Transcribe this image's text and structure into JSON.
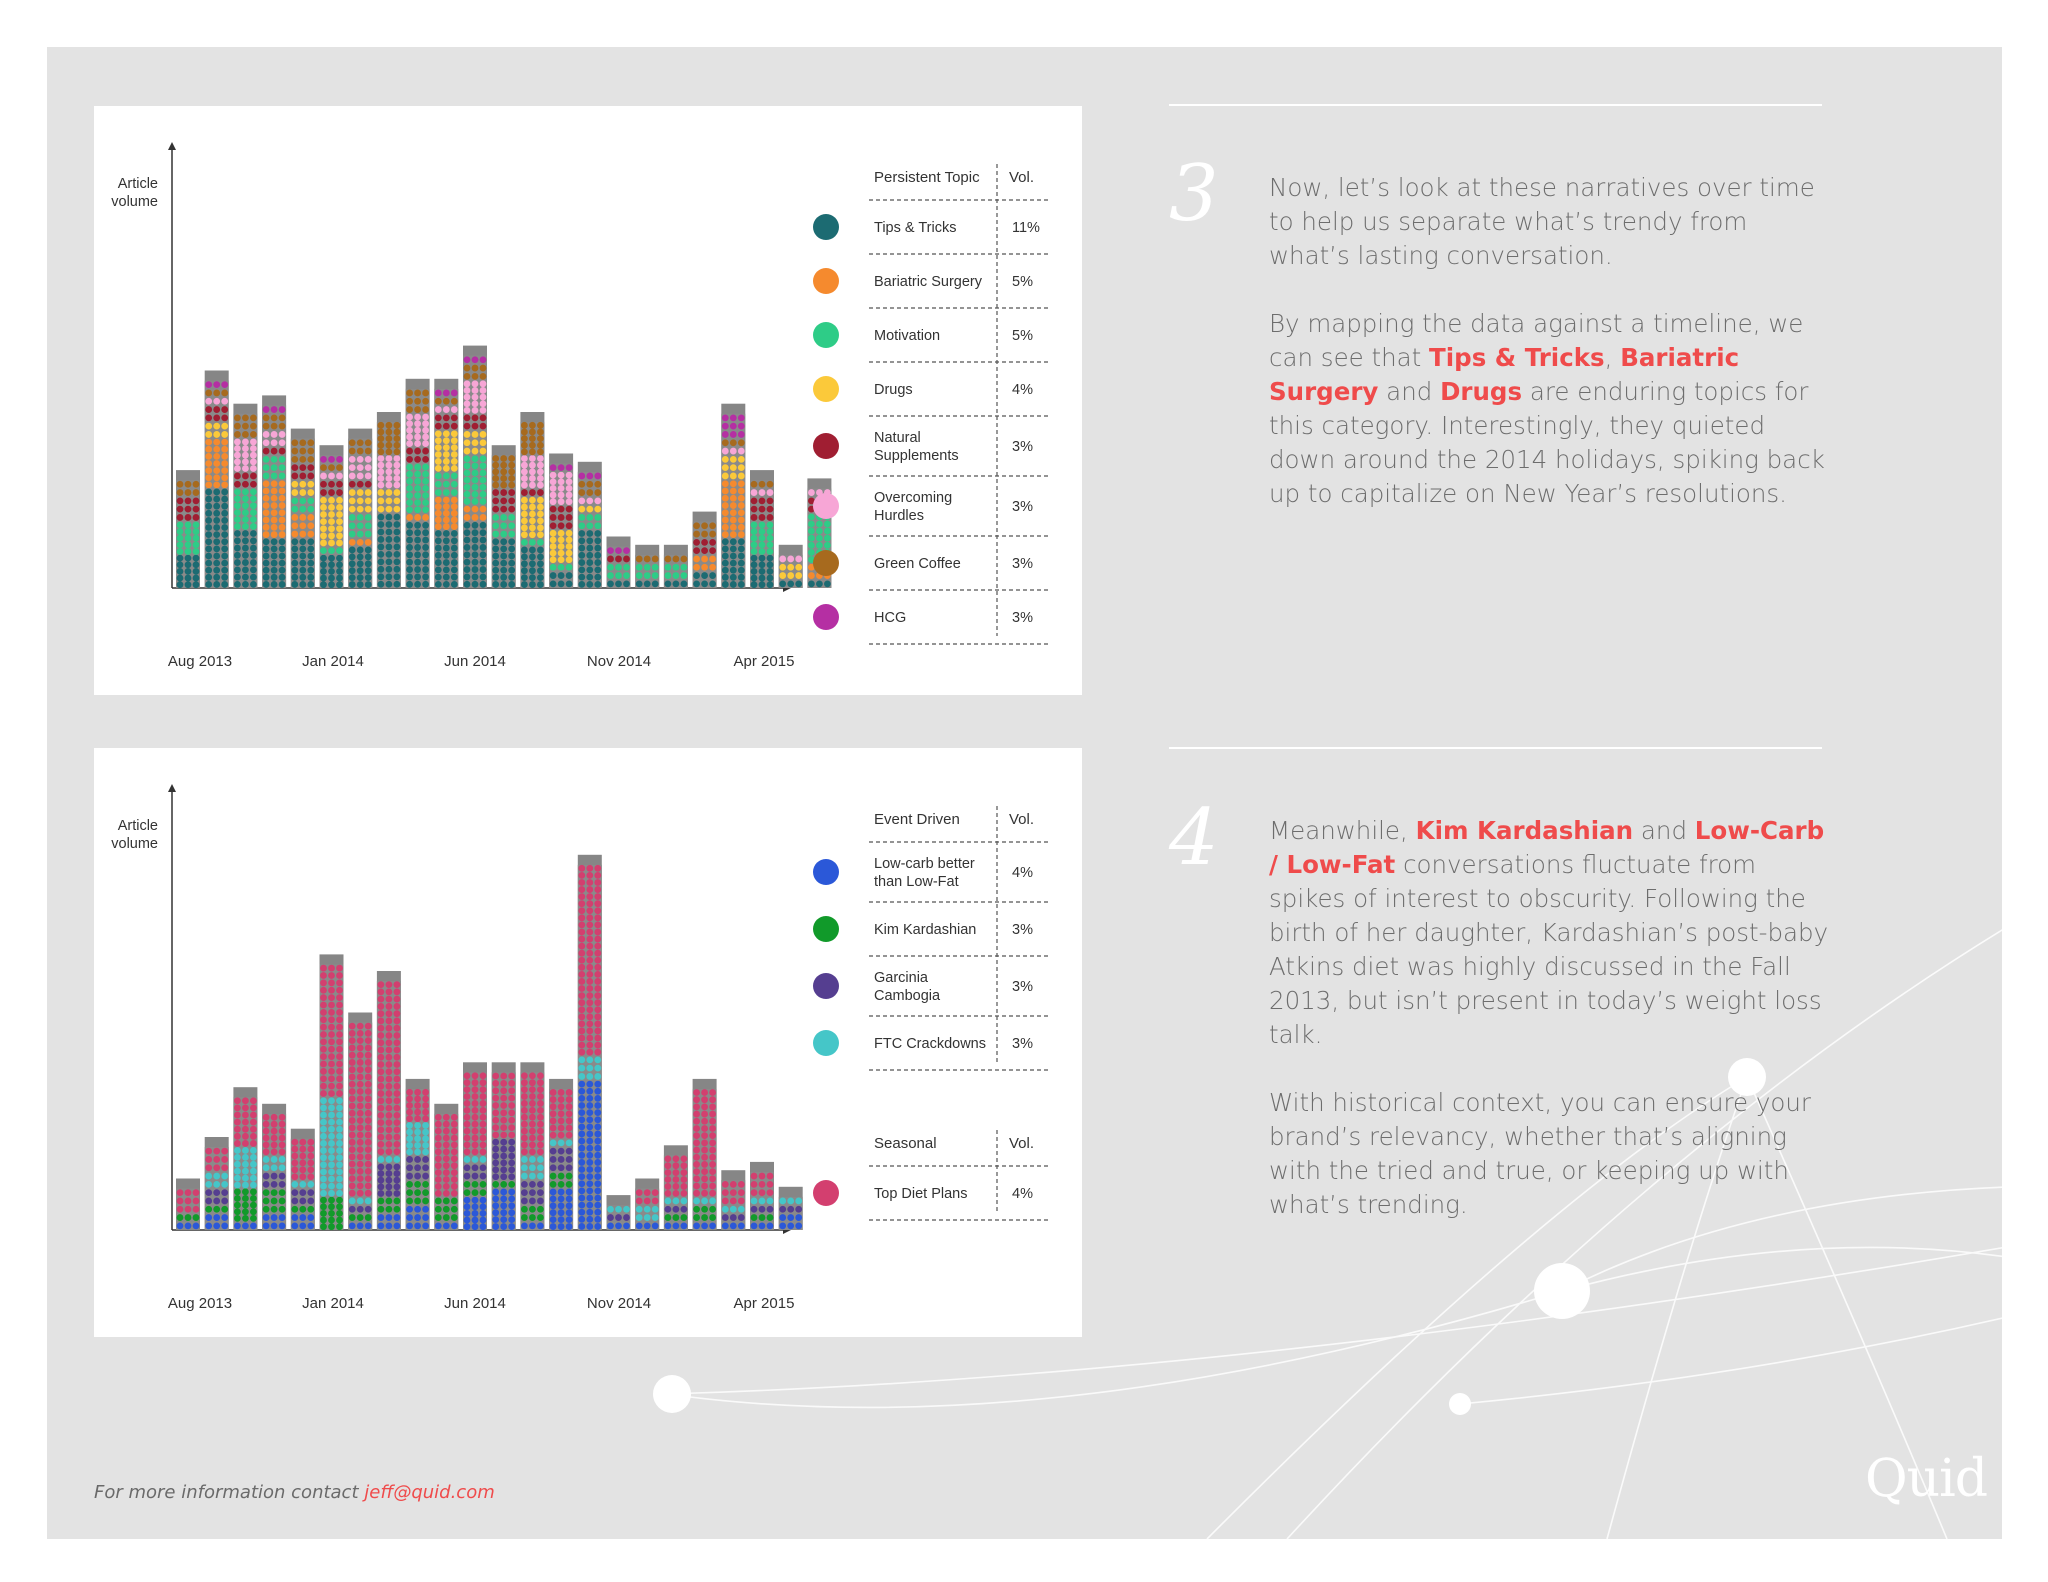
{
  "chart_data": [
    {
      "type": "bar",
      "ylabel": "Article volume",
      "x_tick_labels": [
        "Aug 2013",
        "Jan 2014",
        "Jun 2014",
        "Nov 2014",
        "Apr 2015"
      ],
      "legend": {
        "header_topic": "Persistent Topic",
        "header_vol": "Vol.",
        "items": [
          {
            "lines": [
              "Tips & Tricks"
            ],
            "vol": "11%",
            "color": "#1c6b72"
          },
          {
            "lines": [
              "Bariatric Surgery"
            ],
            "vol": "5%",
            "color": "#f58a2e"
          },
          {
            "lines": [
              "Motivation"
            ],
            "vol": "5%",
            "color": "#2ecc87"
          },
          {
            "lines": [
              "Drugs"
            ],
            "vol": "4%",
            "color": "#fbc93a"
          },
          {
            "lines": [
              "Natural",
              "Supplements"
            ],
            "vol": "3%",
            "color": "#a01e32"
          },
          {
            "lines": [
              "Overcoming",
              "Hurdles"
            ],
            "vol": "3%",
            "color": "#f7a6d6"
          },
          {
            "lines": [
              "Green Coffee"
            ],
            "vol": "3%",
            "color": "#a76a1e"
          },
          {
            "lines": [
              "HCG"
            ],
            "vol": "3%",
            "color": "#b52fa3"
          }
        ]
      },
      "series": [
        {
          "name": "Tips & Tricks",
          "values": [
            4,
            12,
            7,
            6,
            6,
            4,
            5,
            9,
            8,
            7,
            8,
            6,
            5,
            2,
            7,
            1,
            1,
            1,
            2,
            6,
            4,
            1,
            1
          ]
        },
        {
          "name": "Bariatric Surgery",
          "values": [
            0,
            6,
            0,
            7,
            3,
            0,
            1,
            0,
            1,
            4,
            2,
            0,
            0,
            0,
            0,
            0,
            0,
            0,
            2,
            7,
            0,
            0,
            2
          ]
        },
        {
          "name": "Motivation",
          "values": [
            4,
            0,
            5,
            3,
            2,
            1,
            3,
            0,
            6,
            3,
            6,
            3,
            1,
            1,
            2,
            2,
            2,
            2,
            0,
            0,
            4,
            0,
            6
          ]
        },
        {
          "name": "Drugs",
          "values": [
            0,
            2,
            0,
            0,
            2,
            6,
            3,
            3,
            0,
            5,
            3,
            0,
            5,
            4,
            1,
            0,
            0,
            0,
            0,
            3,
            0,
            2,
            0
          ]
        },
        {
          "name": "Natural Supplements",
          "values": [
            3,
            2,
            2,
            1,
            2,
            2,
            1,
            0,
            2,
            2,
            2,
            3,
            1,
            3,
            0,
            1,
            0,
            0,
            2,
            0,
            3,
            0,
            2
          ]
        },
        {
          "name": "Overcoming Hurdles",
          "values": [
            0,
            1,
            4,
            2,
            0,
            1,
            3,
            4,
            4,
            1,
            4,
            0,
            4,
            4,
            1,
            0,
            0,
            0,
            0,
            1,
            1,
            1,
            1
          ]
        },
        {
          "name": "Green Coffee",
          "values": [
            2,
            1,
            3,
            2,
            3,
            1,
            2,
            4,
            3,
            1,
            2,
            4,
            4,
            0,
            2,
            0,
            1,
            1,
            2,
            1,
            1,
            0,
            0
          ]
        },
        {
          "name": "HCG",
          "values": [
            0,
            1,
            0,
            1,
            0,
            1,
            0,
            0,
            0,
            1,
            1,
            0,
            0,
            1,
            1,
            1,
            0,
            0,
            0,
            3,
            0,
            0,
            0
          ]
        }
      ]
    },
    {
      "type": "bar",
      "ylabel": "Article volume",
      "x_tick_labels": [
        "Aug 2013",
        "Jan 2014",
        "Jun 2014",
        "Nov 2014",
        "Apr 2015"
      ],
      "legend_groups": [
        {
          "header_topic": "Event Driven",
          "header_vol": "Vol.",
          "items": [
            {
              "lines": [
                "Low-carb better",
                "than Low-Fat"
              ],
              "vol": "4%",
              "color": "#2b58d8"
            },
            {
              "lines": [
                "Kim Kardashian"
              ],
              "vol": "3%",
              "color": "#119a2a"
            },
            {
              "lines": [
                "Garcinia",
                "Cambogia"
              ],
              "vol": "3%",
              "color": "#553e90"
            },
            {
              "lines": [
                "FTC Crackdowns"
              ],
              "vol": "3%",
              "color": "#45c6c8"
            }
          ]
        },
        {
          "header_topic": "Seasonal",
          "header_vol": "Vol.",
          "items": [
            {
              "lines": [
                "Top Diet Plans"
              ],
              "vol": "4%",
              "color": "#d33f6f"
            }
          ]
        }
      ],
      "series": [
        {
          "name": "Low-carb better than Low-Fat",
          "values": [
            1,
            2,
            1,
            2,
            2,
            0,
            1,
            2,
            3,
            1,
            4,
            5,
            1,
            5,
            18,
            1,
            1,
            1,
            1,
            1,
            1,
            2
          ]
        },
        {
          "name": "Kim Kardashian",
          "values": [
            1,
            1,
            4,
            3,
            1,
            4,
            1,
            2,
            3,
            3,
            2,
            1,
            2,
            2,
            0,
            0,
            0,
            1,
            2,
            0,
            1,
            0
          ]
        },
        {
          "name": "Garcinia Cambogia",
          "values": [
            0,
            2,
            0,
            2,
            2,
            0,
            1,
            4,
            3,
            0,
            2,
            5,
            3,
            3,
            0,
            1,
            0,
            1,
            0,
            1,
            1,
            1
          ]
        },
        {
          "name": "FTC Crackdowns",
          "values": [
            0,
            2,
            5,
            2,
            1,
            12,
            1,
            1,
            4,
            0,
            1,
            0,
            3,
            1,
            3,
            1,
            2,
            1,
            1,
            1,
            1,
            1
          ]
        },
        {
          "name": "Top Diet Plans",
          "values": [
            3,
            3,
            6,
            5,
            5,
            16,
            21,
            21,
            4,
            10,
            10,
            8,
            10,
            6,
            23,
            0,
            2,
            5,
            13,
            3,
            3,
            0
          ]
        }
      ]
    }
  ],
  "section3": {
    "number": "3",
    "p1": "Now, let’s look at these narratives over time to help us separate what’s trendy from what’s lasting conversation.",
    "p2_a": "By mapping the data against a timeline, we can see that ",
    "p2_hl1": "Tips & Tricks",
    "p2_b": ", ",
    "p2_hl2": "Bariatric Surgery",
    "p2_c": " and ",
    "p2_hl3": "Drugs",
    "p2_d": " are enduring topics for this category. Interestingly, they quieted down around the 2014 holidays, spiking back up to capitalize on New Year’s resolutions."
  },
  "section4": {
    "number": "4",
    "p1_a": "Meanwhile, ",
    "p1_hl1": "Kim Kardashian",
    "p1_b": " and ",
    "p1_hl2": "Low-Carb / Low-Fat",
    "p1_c": " conversations fluctuate from spikes of interest to obscurity. Following the birth of her daughter, Kardashian’s post-baby Atkins diet was highly discussed in the Fall 2013, but isn’t present in today’s weight loss talk.",
    "p2": "With historical context, you can ensure your brand’s relevancy, whether that’s aligning with the tried and true, or keeping up with what’s trending."
  },
  "footer": {
    "text": "For more information contact ",
    "email": "jeff@quid.com"
  },
  "logo": "Quid"
}
